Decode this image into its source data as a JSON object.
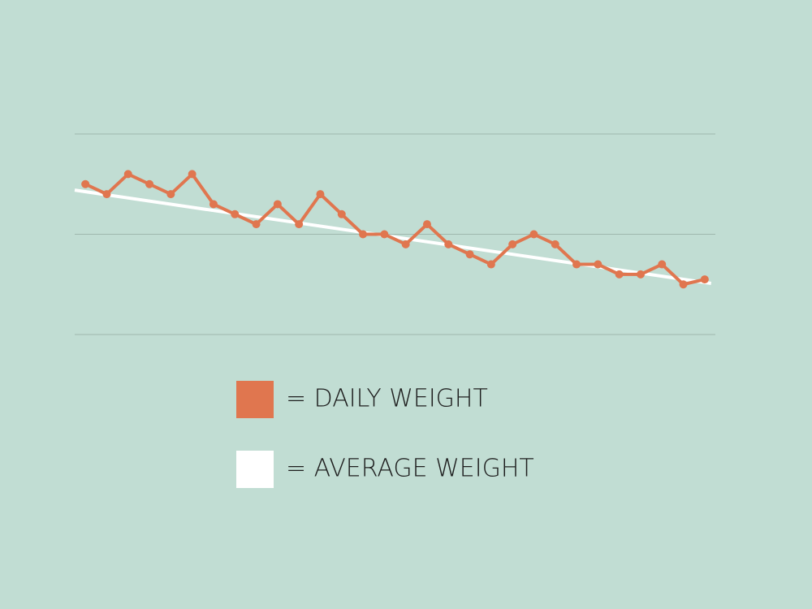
{
  "chart_data": {
    "type": "line",
    "xlim": [
      0.5,
      30.5
    ],
    "ylim": [
      0,
      2
    ],
    "yticks": [
      0,
      1,
      2
    ],
    "grid": true,
    "series": [
      {
        "name": "= DAILY WEIGHT",
        "color": "#e0764f",
        "x": [
          1,
          2,
          3,
          4,
          5,
          6,
          7,
          8,
          9,
          10,
          11,
          12,
          13,
          14,
          15,
          16,
          17,
          18,
          19,
          20,
          21,
          22,
          23,
          24,
          25,
          26,
          27,
          28,
          29,
          30
        ],
        "values": [
          1.5,
          1.4,
          1.6,
          1.5,
          1.4,
          1.6,
          1.3,
          1.2,
          1.1,
          1.3,
          1.1,
          1.4,
          1.2,
          1.0,
          1.0,
          0.9,
          1.1,
          0.9,
          0.8,
          0.7,
          0.9,
          1.0,
          0.9,
          0.7,
          0.7,
          0.6,
          0.6,
          0.7,
          0.5,
          0.55
        ]
      },
      {
        "name": "= AVERAGE WEIGHT",
        "color": "#ffffff",
        "x": [
          0.5,
          30.3
        ],
        "values": [
          1.44,
          0.51
        ]
      }
    ]
  }
}
